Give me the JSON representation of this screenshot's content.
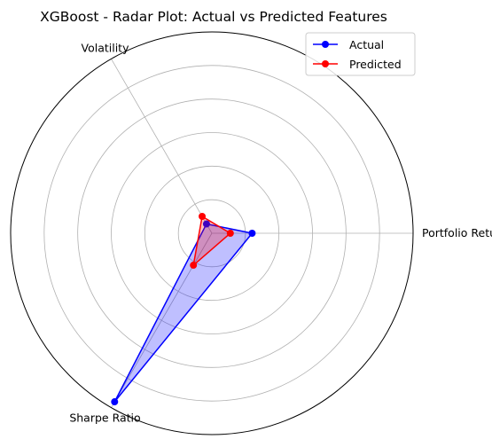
{
  "chart_data": {
    "type": "radar",
    "title": "XGBoost - Radar Plot: Actual vs Predicted Features",
    "categories": [
      "Portfolio Return",
      "Volatility",
      "Sharpe Ratio"
    ],
    "angles_deg": [
      0,
      120,
      240
    ],
    "radial_max": 6.0,
    "radial_ticks": [
      1,
      2,
      3,
      4,
      5,
      6
    ],
    "grid": true,
    "radial_ticklabels_visible": false,
    "legend_position": "upper right",
    "series": [
      {
        "name": "Actual",
        "values": [
          1.2,
          0.32,
          5.8
        ],
        "color": "#0000ff",
        "fill": "#0000ff",
        "fill_alpha": 0.25
      },
      {
        "name": "Predicted",
        "values": [
          0.55,
          0.58,
          1.1
        ],
        "color": "#ff0000",
        "fill": "#ff0000",
        "fill_alpha": 0.25
      }
    ]
  }
}
